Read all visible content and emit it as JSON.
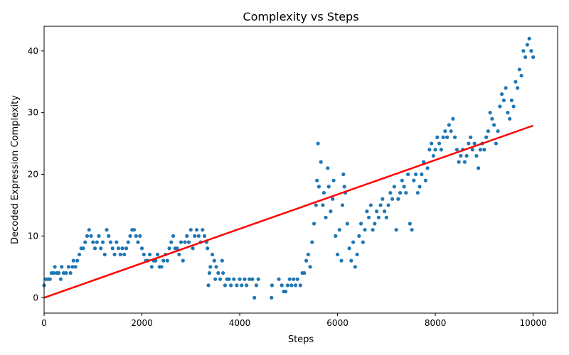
{
  "chart_data": {
    "type": "scatter",
    "title": "Complexity vs Steps",
    "xlabel": "Steps",
    "ylabel": "Decoded Expression Complexity",
    "xlim": [
      0,
      10500
    ],
    "ylim": [
      -2.5,
      44
    ],
    "xticks": [
      0,
      2000,
      4000,
      6000,
      8000,
      10000
    ],
    "yticks": [
      0,
      10,
      20,
      30,
      40
    ],
    "grid": false,
    "legend": "none",
    "colors": {
      "points": "#1f77b4",
      "trend": "#ff0000"
    },
    "trend_line": {
      "x": [
        0,
        10000
      ],
      "y": [
        0,
        27.9
      ]
    },
    "series": [
      {
        "points": [
          [
            0,
            2
          ],
          [
            40,
            3
          ],
          [
            80,
            3
          ],
          [
            120,
            3
          ],
          [
            150,
            4
          ],
          [
            200,
            4
          ],
          [
            220,
            5
          ],
          [
            260,
            4
          ],
          [
            300,
            4
          ],
          [
            340,
            3
          ],
          [
            360,
            5
          ],
          [
            400,
            4
          ],
          [
            450,
            4
          ],
          [
            500,
            5
          ],
          [
            540,
            4
          ],
          [
            580,
            5
          ],
          [
            600,
            6
          ],
          [
            640,
            5
          ],
          [
            680,
            6
          ],
          [
            720,
            7
          ],
          [
            760,
            8
          ],
          [
            800,
            8
          ],
          [
            840,
            9
          ],
          [
            880,
            10
          ],
          [
            920,
            11
          ],
          [
            960,
            10
          ],
          [
            1000,
            9
          ],
          [
            1040,
            8
          ],
          [
            1080,
            9
          ],
          [
            1120,
            10
          ],
          [
            1160,
            8
          ],
          [
            1200,
            9
          ],
          [
            1240,
            7
          ],
          [
            1280,
            11
          ],
          [
            1320,
            10
          ],
          [
            1360,
            9
          ],
          [
            1400,
            8
          ],
          [
            1440,
            7
          ],
          [
            1480,
            9
          ],
          [
            1520,
            8
          ],
          [
            1560,
            7
          ],
          [
            1600,
            8
          ],
          [
            1640,
            7
          ],
          [
            1680,
            8
          ],
          [
            1720,
            9
          ],
          [
            1760,
            10
          ],
          [
            1800,
            11
          ],
          [
            1840,
            11
          ],
          [
            1880,
            10
          ],
          [
            1920,
            9
          ],
          [
            1960,
            10
          ],
          [
            2000,
            8
          ],
          [
            2040,
            7
          ],
          [
            2080,
            6
          ],
          [
            2120,
            6
          ],
          [
            2160,
            7
          ],
          [
            2200,
            5
          ],
          [
            2240,
            6
          ],
          [
            2280,
            6
          ],
          [
            2320,
            7
          ],
          [
            2360,
            5
          ],
          [
            2400,
            5
          ],
          [
            2440,
            6
          ],
          [
            2480,
            7
          ],
          [
            2520,
            6
          ],
          [
            2560,
            8
          ],
          [
            2600,
            9
          ],
          [
            2640,
            10
          ],
          [
            2680,
            8
          ],
          [
            2720,
            8
          ],
          [
            2760,
            7
          ],
          [
            2800,
            9
          ],
          [
            2840,
            6
          ],
          [
            2880,
            9
          ],
          [
            2920,
            10
          ],
          [
            2960,
            9
          ],
          [
            3000,
            11
          ],
          [
            3040,
            8
          ],
          [
            3080,
            10
          ],
          [
            3120,
            11
          ],
          [
            3160,
            10
          ],
          [
            3200,
            9
          ],
          [
            3240,
            11
          ],
          [
            3280,
            10
          ],
          [
            3320,
            9
          ],
          [
            3340,
            8
          ],
          [
            3360,
            2
          ],
          [
            3380,
            4
          ],
          [
            3400,
            5
          ],
          [
            3440,
            7
          ],
          [
            3480,
            6
          ],
          [
            3500,
            3
          ],
          [
            3520,
            5
          ],
          [
            3560,
            4
          ],
          [
            3600,
            3
          ],
          [
            3640,
            6
          ],
          [
            3660,
            4
          ],
          [
            3700,
            2
          ],
          [
            3740,
            3
          ],
          [
            3780,
            3
          ],
          [
            3820,
            2
          ],
          [
            3880,
            3
          ],
          [
            3940,
            2
          ],
          [
            4000,
            3
          ],
          [
            4040,
            2
          ],
          [
            4100,
            3
          ],
          [
            4140,
            2
          ],
          [
            4200,
            3
          ],
          [
            4260,
            3
          ],
          [
            4300,
            0
          ],
          [
            4340,
            2
          ],
          [
            4380,
            3
          ],
          [
            4650,
            0
          ],
          [
            4660,
            2
          ],
          [
            4800,
            3
          ],
          [
            4860,
            2
          ],
          [
            4900,
            1
          ],
          [
            4940,
            1
          ],
          [
            4980,
            2
          ],
          [
            5020,
            3
          ],
          [
            5060,
            2
          ],
          [
            5100,
            3
          ],
          [
            5140,
            2
          ],
          [
            5180,
            3
          ],
          [
            5240,
            2
          ],
          [
            5280,
            4
          ],
          [
            5320,
            4
          ],
          [
            5360,
            6
          ],
          [
            5400,
            7
          ],
          [
            5440,
            5
          ],
          [
            5480,
            9
          ],
          [
            5520,
            12
          ],
          [
            5560,
            15
          ],
          [
            5580,
            19
          ],
          [
            5600,
            25
          ],
          [
            5620,
            18
          ],
          [
            5660,
            22
          ],
          [
            5700,
            15
          ],
          [
            5720,
            17
          ],
          [
            5760,
            13
          ],
          [
            5800,
            21
          ],
          [
            5820,
            18
          ],
          [
            5860,
            14
          ],
          [
            5900,
            16
          ],
          [
            5920,
            19
          ],
          [
            5960,
            10
          ],
          [
            6000,
            7
          ],
          [
            6040,
            11
          ],
          [
            6080,
            6
          ],
          [
            6100,
            15
          ],
          [
            6120,
            20
          ],
          [
            6140,
            18
          ],
          [
            6160,
            17
          ],
          [
            6200,
            12
          ],
          [
            6240,
            8
          ],
          [
            6280,
            6
          ],
          [
            6320,
            9
          ],
          [
            6360,
            5
          ],
          [
            6400,
            7
          ],
          [
            6440,
            10
          ],
          [
            6480,
            12
          ],
          [
            6520,
            9
          ],
          [
            6560,
            11
          ],
          [
            6600,
            14
          ],
          [
            6640,
            13
          ],
          [
            6680,
            15
          ],
          [
            6720,
            11
          ],
          [
            6760,
            12
          ],
          [
            6800,
            14
          ],
          [
            6840,
            13
          ],
          [
            6880,
            15
          ],
          [
            6920,
            16
          ],
          [
            6960,
            14
          ],
          [
            7000,
            13
          ],
          [
            7040,
            15
          ],
          [
            7080,
            17
          ],
          [
            7120,
            16
          ],
          [
            7160,
            18
          ],
          [
            7200,
            11
          ],
          [
            7240,
            16
          ],
          [
            7280,
            17
          ],
          [
            7320,
            19
          ],
          [
            7360,
            18
          ],
          [
            7400,
            17
          ],
          [
            7440,
            20
          ],
          [
            7480,
            12
          ],
          [
            7520,
            11
          ],
          [
            7560,
            19
          ],
          [
            7600,
            20
          ],
          [
            7640,
            17
          ],
          [
            7680,
            18
          ],
          [
            7720,
            20
          ],
          [
            7760,
            22
          ],
          [
            7800,
            19
          ],
          [
            7840,
            21
          ],
          [
            7880,
            24
          ],
          [
            7920,
            25
          ],
          [
            7960,
            23
          ],
          [
            8000,
            24
          ],
          [
            8040,
            26
          ],
          [
            8080,
            25
          ],
          [
            8120,
            24
          ],
          [
            8160,
            26
          ],
          [
            8200,
            27
          ],
          [
            8240,
            26
          ],
          [
            8280,
            28
          ],
          [
            8320,
            27
          ],
          [
            8360,
            29
          ],
          [
            8400,
            26
          ],
          [
            8440,
            24
          ],
          [
            8480,
            22
          ],
          [
            8520,
            23
          ],
          [
            8560,
            24
          ],
          [
            8600,
            22
          ],
          [
            8640,
            23
          ],
          [
            8680,
            25
          ],
          [
            8720,
            26
          ],
          [
            8760,
            24
          ],
          [
            8800,
            25
          ],
          [
            8840,
            23
          ],
          [
            8880,
            21
          ],
          [
            8920,
            24
          ],
          [
            8960,
            25
          ],
          [
            9000,
            24
          ],
          [
            9040,
            26
          ],
          [
            9080,
            27
          ],
          [
            9120,
            30
          ],
          [
            9160,
            29
          ],
          [
            9200,
            28
          ],
          [
            9240,
            25
          ],
          [
            9280,
            27
          ],
          [
            9320,
            31
          ],
          [
            9360,
            33
          ],
          [
            9400,
            32
          ],
          [
            9440,
            34
          ],
          [
            9480,
            30
          ],
          [
            9520,
            29
          ],
          [
            9560,
            32
          ],
          [
            9600,
            31
          ],
          [
            9640,
            35
          ],
          [
            9680,
            34
          ],
          [
            9720,
            37
          ],
          [
            9760,
            36
          ],
          [
            9800,
            40
          ],
          [
            9840,
            39
          ],
          [
            9880,
            41
          ],
          [
            9920,
            42
          ],
          [
            9960,
            40
          ],
          [
            10000,
            39
          ]
        ]
      }
    ]
  }
}
